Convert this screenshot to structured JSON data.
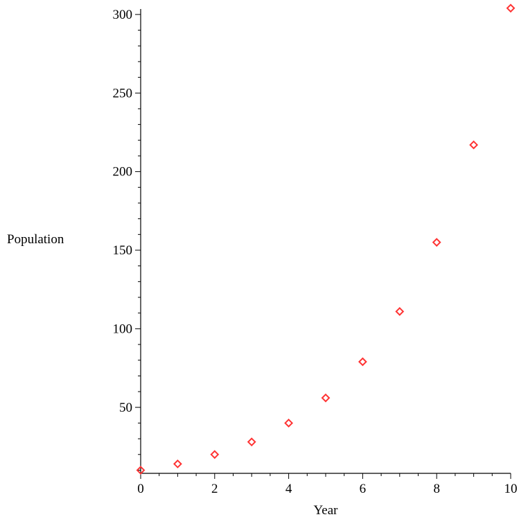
{
  "chart_data": {
    "type": "scatter",
    "xlabel": "Year",
    "ylabel": "Population",
    "xlim": [
      0,
      10
    ],
    "ylim": [
      8,
      307
    ],
    "x_ticks": [
      0,
      2,
      4,
      6,
      8,
      10
    ],
    "y_ticks": [
      50,
      100,
      150,
      200,
      250,
      300
    ],
    "grid": false,
    "marker": "diamond-open",
    "marker_color": "#ff3333",
    "points": [
      {
        "x": 0,
        "y": 10
      },
      {
        "x": 1,
        "y": 14
      },
      {
        "x": 2,
        "y": 20
      },
      {
        "x": 3,
        "y": 28
      },
      {
        "x": 4,
        "y": 40
      },
      {
        "x": 5,
        "y": 56
      },
      {
        "x": 6,
        "y": 79
      },
      {
        "x": 7,
        "y": 111
      },
      {
        "x": 8,
        "y": 155
      },
      {
        "x": 9,
        "y": 217
      },
      {
        "x": 10,
        "y": 304
      }
    ]
  }
}
